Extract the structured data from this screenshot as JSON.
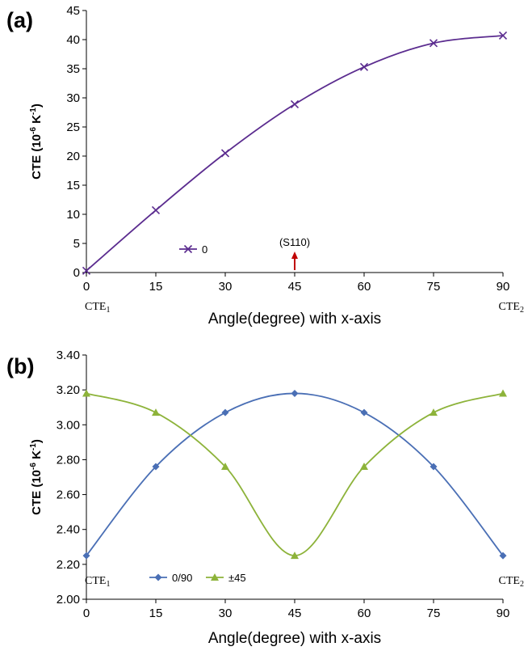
{
  "chart_data": [
    {
      "panel": "(a)",
      "type": "line",
      "xlabel": "Angle(degree) with x-axis",
      "ylabel": {
        "main": "CTE (10",
        "sup1": "-6",
        "mid": " K",
        "sup2": "-1",
        "end": ")"
      },
      "xlim": [
        0,
        90
      ],
      "ylim": [
        0,
        45
      ],
      "x_ticks": [
        "0",
        "15",
        "30",
        "45",
        "60",
        "75",
        "90"
      ],
      "y_ticks": [
        "0",
        "5",
        "10",
        "15",
        "20",
        "25",
        "30",
        "35",
        "40",
        "45"
      ],
      "x_end_labels": [
        {
          "main": "CTE",
          "sub": "1"
        },
        {
          "main": "CTE",
          "sub": "2"
        }
      ],
      "series": [
        {
          "name": "0",
          "color": "#5b2c8f",
          "marker": "x",
          "x": [
            0,
            15,
            30,
            45,
            60,
            75,
            90
          ],
          "y": [
            0.3,
            10.7,
            20.5,
            28.9,
            35.3,
            39.4,
            40.7
          ]
        }
      ],
      "annotation": {
        "text": "(S110)",
        "x": 45,
        "arrow_color": "#c00000"
      },
      "grid": false,
      "legend": "bottom-left"
    },
    {
      "panel": "(b)",
      "type": "line",
      "xlabel": "Angle(degree) with x-axis",
      "ylabel": {
        "main": "CTE (10",
        "sup1": "-6",
        "mid": " K",
        "sup2": "-1",
        "end": ")"
      },
      "xlim": [
        0,
        90
      ],
      "ylim": [
        2.0,
        3.4
      ],
      "x_ticks": [
        "0",
        "15",
        "30",
        "45",
        "60",
        "75",
        "90"
      ],
      "y_ticks": [
        "2.00",
        "2.20",
        "2.40",
        "2.60",
        "2.80",
        "3.00",
        "3.20",
        "3.40"
      ],
      "x_end_labels": [
        {
          "main": "CTE",
          "sub": "1"
        },
        {
          "main": "CTE",
          "sub": "2"
        }
      ],
      "series": [
        {
          "name": "0/90",
          "color": "#4a6fb5",
          "marker": "diamond",
          "x": [
            0,
            15,
            30,
            45,
            60,
            75,
            90
          ],
          "y": [
            2.25,
            2.76,
            3.07,
            3.18,
            3.07,
            2.76,
            2.25
          ]
        },
        {
          "name": "±45",
          "color": "#8db33a",
          "marker": "triangle",
          "x": [
            0,
            15,
            30,
            45,
            60,
            75,
            90
          ],
          "y": [
            3.18,
            3.07,
            2.76,
            2.25,
            2.76,
            3.07,
            3.18
          ]
        }
      ],
      "grid": false,
      "legend": "bottom-left"
    }
  ]
}
